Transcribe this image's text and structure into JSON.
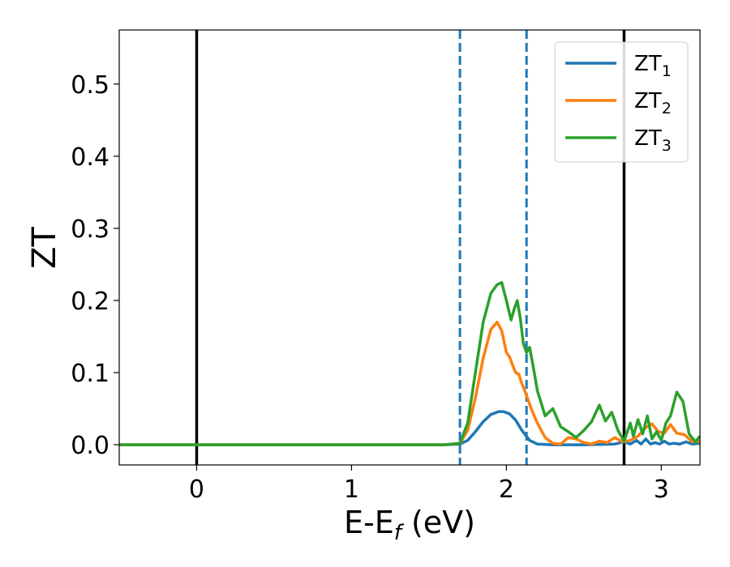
{
  "chart_data": {
    "type": "line",
    "xlabel": "E-E_f (eV)",
    "xlabel_main": "E-E",
    "xlabel_sub": "f",
    "xlabel_unit": " (eV)",
    "ylabel": "ZT",
    "xlim": [
      -0.5,
      3.25
    ],
    "ylim": [
      -0.028,
      0.575
    ],
    "xticks": [
      0,
      1,
      2,
      3
    ],
    "xtick_labels": [
      "0",
      "1",
      "2",
      "3"
    ],
    "yticks": [
      0.0,
      0.1,
      0.2,
      0.3,
      0.4,
      0.5
    ],
    "ytick_labels": [
      "0.0",
      "0.1",
      "0.2",
      "0.3",
      "0.4",
      "0.5"
    ],
    "grid": false,
    "legend_placement": "top-right",
    "vertical_lines": [
      {
        "x": 0.0,
        "style": "solid",
        "color": "#000000"
      },
      {
        "x": 2.76,
        "style": "solid",
        "color": "#000000"
      },
      {
        "x": 1.7,
        "style": "dashed",
        "color": "#1f77b4"
      },
      {
        "x": 2.13,
        "style": "dashed",
        "color": "#1f77b4"
      }
    ],
    "series": [
      {
        "name": "ZT_1",
        "legend_main": "ZT",
        "legend_sub": "1",
        "color": "#1f77b4",
        "x": [
          -0.5,
          1.6,
          1.7,
          1.75,
          1.8,
          1.85,
          1.9,
          1.95,
          1.98,
          2.02,
          2.06,
          2.1,
          2.15,
          2.2,
          2.3,
          2.5,
          2.7,
          2.76,
          2.8,
          2.84,
          2.87,
          2.9,
          2.93,
          2.96,
          2.99,
          3.02,
          3.05,
          3.08,
          3.12,
          3.16,
          3.2,
          3.25
        ],
        "y": [
          0.0,
          0.0,
          0.001,
          0.006,
          0.018,
          0.032,
          0.042,
          0.046,
          0.046,
          0.043,
          0.034,
          0.02,
          0.006,
          0.001,
          0.0,
          0.0,
          0.001,
          0.004,
          0.001,
          0.006,
          0.001,
          0.008,
          0.001,
          0.003,
          0.001,
          0.005,
          0.001,
          0.002,
          0.001,
          0.004,
          0.001,
          0.002
        ]
      },
      {
        "name": "ZT_2",
        "legend_main": "ZT",
        "legend_sub": "2",
        "color": "#ff7f0e",
        "x": [
          -0.5,
          1.6,
          1.7,
          1.75,
          1.8,
          1.85,
          1.9,
          1.94,
          1.97,
          2.0,
          2.02,
          2.04,
          2.06,
          2.08,
          2.1,
          2.13,
          2.16,
          2.2,
          2.25,
          2.3,
          2.35,
          2.4,
          2.45,
          2.5,
          2.55,
          2.6,
          2.65,
          2.7,
          2.75,
          2.8,
          2.85,
          2.9,
          2.94,
          2.98,
          3.02,
          3.06,
          3.1,
          3.15,
          3.2,
          3.25
        ],
        "y": [
          0.0,
          0.0,
          0.002,
          0.02,
          0.065,
          0.12,
          0.16,
          0.17,
          0.158,
          0.128,
          0.122,
          0.11,
          0.1,
          0.098,
          0.085,
          0.068,
          0.05,
          0.03,
          0.01,
          0.002,
          0.001,
          0.01,
          0.008,
          0.003,
          0.001,
          0.005,
          0.003,
          0.01,
          0.004,
          0.006,
          0.012,
          0.024,
          0.029,
          0.018,
          0.016,
          0.028,
          0.016,
          0.014,
          0.004,
          0.005
        ]
      },
      {
        "name": "ZT_3",
        "legend_main": "ZT",
        "legend_sub": "3",
        "color": "#2ca02c",
        "x": [
          -0.5,
          1.6,
          1.7,
          1.75,
          1.8,
          1.85,
          1.9,
          1.94,
          1.97,
          2.0,
          2.03,
          2.05,
          2.07,
          2.09,
          2.11,
          2.13,
          2.15,
          2.18,
          2.2,
          2.25,
          2.3,
          2.35,
          2.4,
          2.45,
          2.5,
          2.55,
          2.6,
          2.64,
          2.68,
          2.72,
          2.76,
          2.8,
          2.82,
          2.85,
          2.88,
          2.91,
          2.94,
          2.97,
          3.0,
          3.03,
          3.06,
          3.1,
          3.14,
          3.18,
          3.22,
          3.25
        ],
        "y": [
          0.0,
          0.0,
          0.002,
          0.03,
          0.1,
          0.17,
          0.21,
          0.222,
          0.225,
          0.2,
          0.173,
          0.188,
          0.2,
          0.175,
          0.14,
          0.128,
          0.135,
          0.1,
          0.075,
          0.04,
          0.05,
          0.025,
          0.018,
          0.01,
          0.02,
          0.032,
          0.055,
          0.033,
          0.045,
          0.02,
          0.005,
          0.03,
          0.012,
          0.035,
          0.015,
          0.04,
          0.008,
          0.018,
          0.006,
          0.03,
          0.04,
          0.073,
          0.06,
          0.015,
          0.004,
          0.012
        ]
      }
    ]
  }
}
